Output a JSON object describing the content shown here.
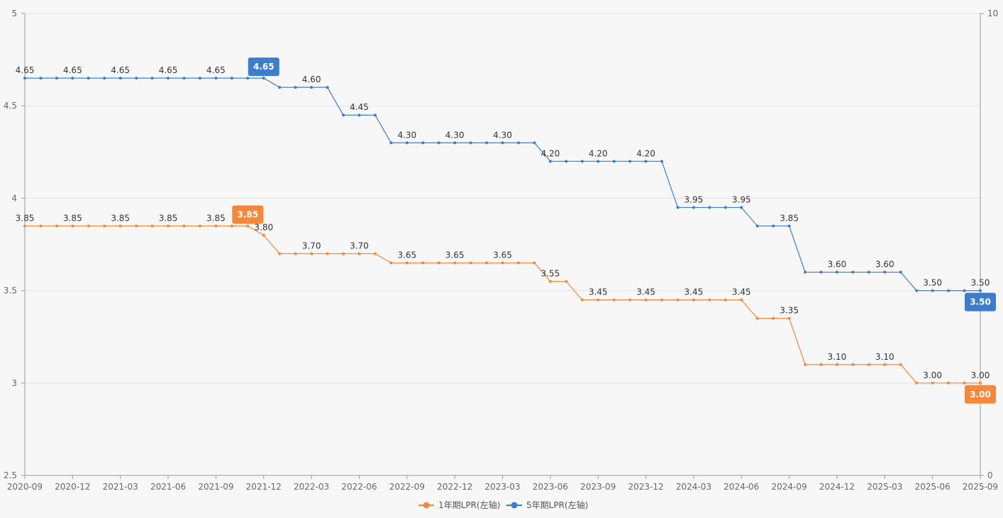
{
  "chart_data": {
    "type": "line",
    "title": "",
    "x": [
      "2020-09",
      "2020-10",
      "2020-11",
      "2020-12",
      "2021-01",
      "2021-02",
      "2021-03",
      "2021-04",
      "2021-05",
      "2021-06",
      "2021-07",
      "2021-08",
      "2021-09",
      "2021-10",
      "2021-11",
      "2021-12",
      "2022-01",
      "2022-02",
      "2022-03",
      "2022-04",
      "2022-05",
      "2022-06",
      "2022-07",
      "2022-08",
      "2022-09",
      "2022-10",
      "2022-11",
      "2022-12",
      "2023-01",
      "2023-02",
      "2023-03",
      "2023-04",
      "2023-05",
      "2023-06",
      "2023-07",
      "2023-08",
      "2023-09",
      "2023-10",
      "2023-11",
      "2023-12",
      "2024-01",
      "2024-02",
      "2024-03",
      "2024-04",
      "2024-05",
      "2024-06",
      "2024-07",
      "2024-08",
      "2024-09",
      "2024-10",
      "2024-11",
      "2024-12",
      "2025-01",
      "2025-02",
      "2025-03",
      "2025-04",
      "2025-05",
      "2025-06",
      "2025-07",
      "2025-08",
      "2025-09"
    ],
    "x_tick_labels": [
      "2020-09",
      "2020-12",
      "2021-03",
      "2021-06",
      "2021-09",
      "2021-12",
      "2022-03",
      "2022-06",
      "2022-09",
      "2022-12",
      "2023-03",
      "2023-06",
      "2023-09",
      "2023-12",
      "2024-03",
      "2024-06",
      "2024-09",
      "2024-12",
      "2025-03",
      "2025-06",
      "2025-09"
    ],
    "y_left": {
      "min": 2.5,
      "max": 5,
      "ticks": [
        "2.5",
        "3",
        "3.5",
        "4",
        "4.5",
        "5"
      ]
    },
    "y_right": {
      "min": 0,
      "max": 10,
      "ticks": [
        "0",
        "10"
      ]
    },
    "grid": true,
    "legend_position": "bottom-center",
    "series": [
      {
        "name": "1年期LPR(左轴)",
        "color": "#f5883a",
        "values": [
          3.85,
          3.85,
          3.85,
          3.85,
          3.85,
          3.85,
          3.85,
          3.85,
          3.85,
          3.85,
          3.85,
          3.85,
          3.85,
          3.85,
          3.85,
          3.8,
          3.7,
          3.7,
          3.7,
          3.7,
          3.7,
          3.7,
          3.7,
          3.65,
          3.65,
          3.65,
          3.65,
          3.65,
          3.65,
          3.65,
          3.65,
          3.65,
          3.65,
          3.55,
          3.55,
          3.45,
          3.45,
          3.45,
          3.45,
          3.45,
          3.45,
          3.45,
          3.45,
          3.45,
          3.45,
          3.45,
          3.35,
          3.35,
          3.35,
          3.1,
          3.1,
          3.1,
          3.1,
          3.1,
          3.1,
          3.1,
          3.0,
          3.0,
          3.0,
          3.0,
          3.0
        ],
        "label_indices": [
          0,
          3,
          6,
          9,
          12,
          15,
          18,
          21,
          24,
          27,
          30,
          33,
          36,
          39,
          42,
          45,
          48,
          51,
          54,
          57,
          60
        ],
        "badge_index": 14,
        "end_badge": "3.00"
      },
      {
        "name": "5年期LPR(左轴)",
        "color": "#3d7ecb",
        "values": [
          4.65,
          4.65,
          4.65,
          4.65,
          4.65,
          4.65,
          4.65,
          4.65,
          4.65,
          4.65,
          4.65,
          4.65,
          4.65,
          4.65,
          4.65,
          4.65,
          4.6,
          4.6,
          4.6,
          4.6,
          4.45,
          4.45,
          4.45,
          4.3,
          4.3,
          4.3,
          4.3,
          4.3,
          4.3,
          4.3,
          4.3,
          4.3,
          4.3,
          4.2,
          4.2,
          4.2,
          4.2,
          4.2,
          4.2,
          4.2,
          4.2,
          3.95,
          3.95,
          3.95,
          3.95,
          3.95,
          3.85,
          3.85,
          3.85,
          3.6,
          3.6,
          3.6,
          3.6,
          3.6,
          3.6,
          3.6,
          3.5,
          3.5,
          3.5,
          3.5,
          3.5
        ],
        "label_indices": [
          0,
          3,
          6,
          9,
          12,
          18,
          21,
          24,
          27,
          30,
          33,
          36,
          39,
          42,
          45,
          48,
          51,
          54,
          57,
          60
        ],
        "badge_index": 15,
        "end_badge": "3.50"
      }
    ]
  }
}
